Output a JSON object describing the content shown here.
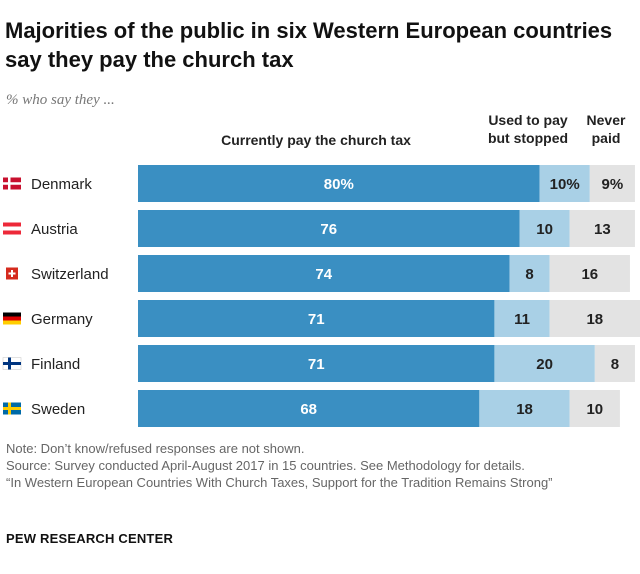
{
  "chart_data": {
    "type": "bar",
    "stacked": true,
    "orientation": "horizontal",
    "title": "Majorities of the public in six Western European countries say they pay the church tax",
    "subtitle": "% who say they ...",
    "categories": [
      "Denmark",
      "Austria",
      "Switzerland",
      "Germany",
      "Finland",
      "Sweden"
    ],
    "series": [
      {
        "name": "Currently pay the church tax",
        "values": [
          80,
          76,
          74,
          71,
          71,
          68
        ],
        "labels": [
          "80%",
          "76",
          "74",
          "71",
          "71",
          "68"
        ],
        "color": "#3a8fc2",
        "label_color": "#ffffff"
      },
      {
        "name": "Used to pay but stopped",
        "values": [
          10,
          10,
          8,
          11,
          20,
          18
        ],
        "labels": [
          "10%",
          "10",
          "8",
          "11",
          "20",
          "18"
        ],
        "color": "#a9d0e6",
        "label_color": "#222222"
      },
      {
        "name": "Never paid",
        "values": [
          9,
          13,
          16,
          18,
          8,
          10
        ],
        "labels": [
          "9%",
          "13",
          "16",
          "18",
          "8",
          "10"
        ],
        "color": "#e3e3e3",
        "label_color": "#222222"
      }
    ],
    "column_headers": {
      "current": "Currently pay the church tax",
      "stopped_line1": "Used to pay",
      "stopped_line2": "but stopped",
      "never_line1": "Never",
      "never_line2": "paid"
    },
    "flag_colors": {
      "Denmark": [
        "#c8102e",
        "#ffffff"
      ],
      "Austria": [
        "#ed2939",
        "#ffffff"
      ],
      "Switzerland": [
        "#d52b1e",
        "#ffffff"
      ],
      "Germany": [
        "#000000",
        "#dd0000",
        "#ffce00"
      ],
      "Finland": [
        "#ffffff",
        "#003580"
      ],
      "Sweden": [
        "#006aa7",
        "#fecc00"
      ]
    }
  },
  "notes": {
    "note": "Note: Don’t know/refused responses are not shown.",
    "source": "Source: Survey conducted April-August 2017 in 15 countries. See Methodology for details.",
    "report": "“In Western European Countries With Church Taxes, Support for the Tradition Remains Strong”"
  },
  "brand": "PEW RESEARCH CENTER"
}
